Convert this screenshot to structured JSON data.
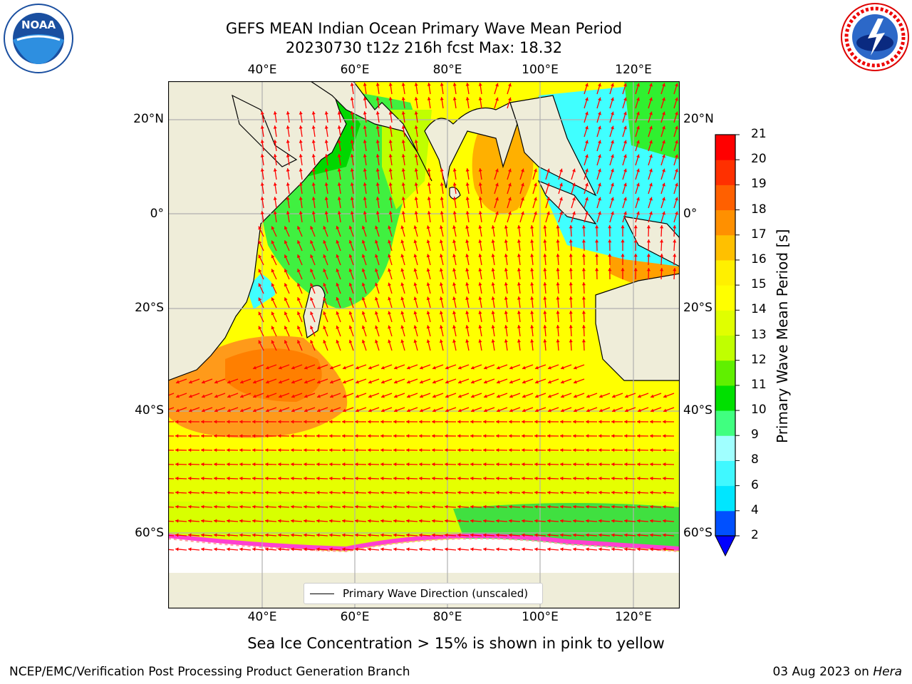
{
  "title_line1": "GEFS MEAN Indian Ocean Primary Wave Mean Period",
  "title_line2": "20230730 t12z 216h fcst   Max: 18.32",
  "logos": {
    "noaa_text": "NOAA",
    "noaa_ring_text": "NATIONAL OCEANIC AND ATMOSPHERIC ADMINISTRATION",
    "noaa_ring_bottom": "U.S. DEPARTMENT OF COMMERCE",
    "nws_ring_text": "NATIONAL WEATHER SERVICE"
  },
  "lon_ticks": [
    "40°E",
    "60°E",
    "80°E",
    "100°E",
    "120°E"
  ],
  "lat_ticks": [
    "20°N",
    "0°",
    "20°S",
    "40°S",
    "60°S"
  ],
  "legend": {
    "label": "Primary Wave Direction (unscaled)"
  },
  "colorbar": {
    "label": "Primary Wave Mean Period [s]",
    "ticks": [
      "2",
      "4",
      "6",
      "8",
      "9",
      "10",
      "11",
      "12",
      "13",
      "14",
      "15",
      "16",
      "17",
      "18",
      "19",
      "20",
      "21"
    ],
    "colors": [
      "#0050ff",
      "#00e6ff",
      "#40f8ff",
      "#a0ffff",
      "#40ff80",
      "#00e000",
      "#60f000",
      "#c0ff00",
      "#e0ff00",
      "#ffff00",
      "#fff000",
      "#ffc000",
      "#ff9000",
      "#ff6000",
      "#ff3000",
      "#ff0000"
    ],
    "extend_min_color": "#0000ff"
  },
  "map_colors": {
    "land": "#efedd9",
    "ice": "#ffffff",
    "arrow": "#ff0000",
    "grid": "#b0b0b0"
  },
  "sea_ice_note": "Sea Ice Concentration > 15% is shown in pink to yellow",
  "footer_left": "NCEP/EMC/Verification Post Processing Product Generation Branch",
  "footer_right_date": "03 Aug 2023 on ",
  "footer_right_machine": "Hera"
}
